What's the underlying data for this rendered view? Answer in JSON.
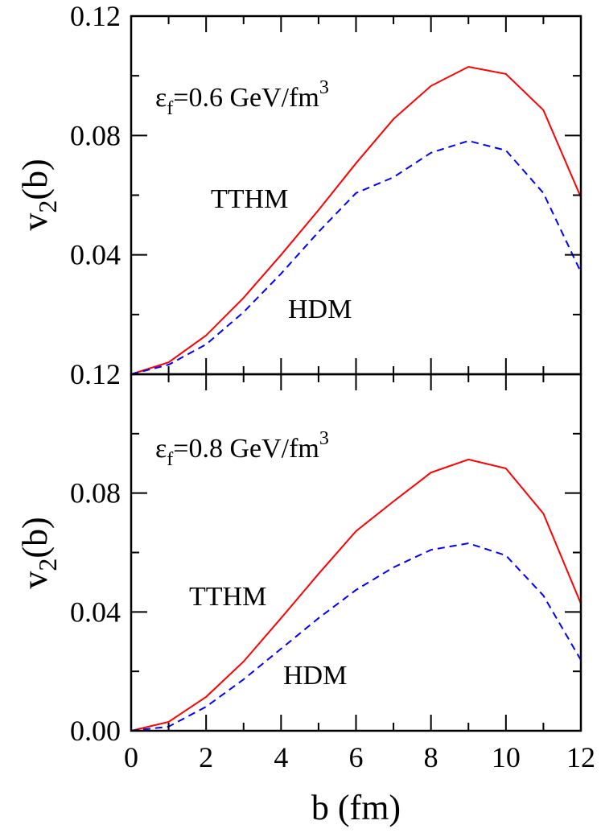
{
  "chart_data": [
    {
      "type": "line",
      "annotation": {
        "text": "ε",
        "sub": "f",
        "mid": "=0.6 GeV/fm",
        "sup": "3"
      },
      "ylabel": {
        "text": "v",
        "sub": "2",
        "rest": "(b)"
      },
      "x": [
        0,
        1,
        2,
        3,
        4,
        5,
        6,
        7,
        8,
        9,
        10,
        11,
        12
      ],
      "series": [
        {
          "name": "TTHM",
          "color": "#ff0000",
          "dash": false,
          "values": [
            0,
            0.004,
            0.013,
            0.0256,
            0.04,
            0.055,
            0.0707,
            0.0855,
            0.0966,
            0.103,
            0.1006,
            0.0885,
            0.0593
          ]
        },
        {
          "name": "HDM",
          "color": "#0000ff",
          "dash": true,
          "values": [
            0,
            0.0032,
            0.01,
            0.0208,
            0.0337,
            0.0477,
            0.0607,
            0.066,
            0.0742,
            0.0782,
            0.075,
            0.0607,
            0.0342
          ]
        }
      ],
      "xlim": [
        0,
        12
      ],
      "ylim": [
        0,
        0.12
      ],
      "yticks": [
        0.04,
        0.08,
        0.12
      ]
    },
    {
      "type": "line",
      "annotation": {
        "text": "ε",
        "sub": "f",
        "mid": "=0.8 GeV/fm",
        "sup": "3"
      },
      "ylabel": {
        "text": "v",
        "sub": "2",
        "rest": "(b)"
      },
      "xlabel": "b (fm)",
      "x": [
        0,
        1,
        2,
        3,
        4,
        5,
        6,
        7,
        8,
        9,
        10,
        11,
        12
      ],
      "series": [
        {
          "name": "TTHM",
          "color": "#ff0000",
          "dash": false,
          "values": [
            0,
            0.003,
            0.0114,
            0.0233,
            0.0379,
            0.0528,
            0.0672,
            0.0772,
            0.0869,
            0.0913,
            0.0883,
            0.0731,
            0.0428
          ]
        },
        {
          "name": "HDM",
          "color": "#0000ff",
          "dash": true,
          "values": [
            0,
            0.0014,
            0.0081,
            0.0173,
            0.0276,
            0.0379,
            0.0474,
            0.055,
            0.0609,
            0.0631,
            0.059,
            0.0455,
            0.0238
          ]
        }
      ],
      "xlim": [
        0,
        12
      ],
      "ylim": [
        0,
        0.12
      ],
      "xticks": [
        0,
        2,
        4,
        6,
        8,
        10,
        12
      ],
      "yticks": [
        {
          "value": 0,
          "label": "0.00"
        },
        0.04,
        0.08,
        0.12
      ]
    }
  ]
}
